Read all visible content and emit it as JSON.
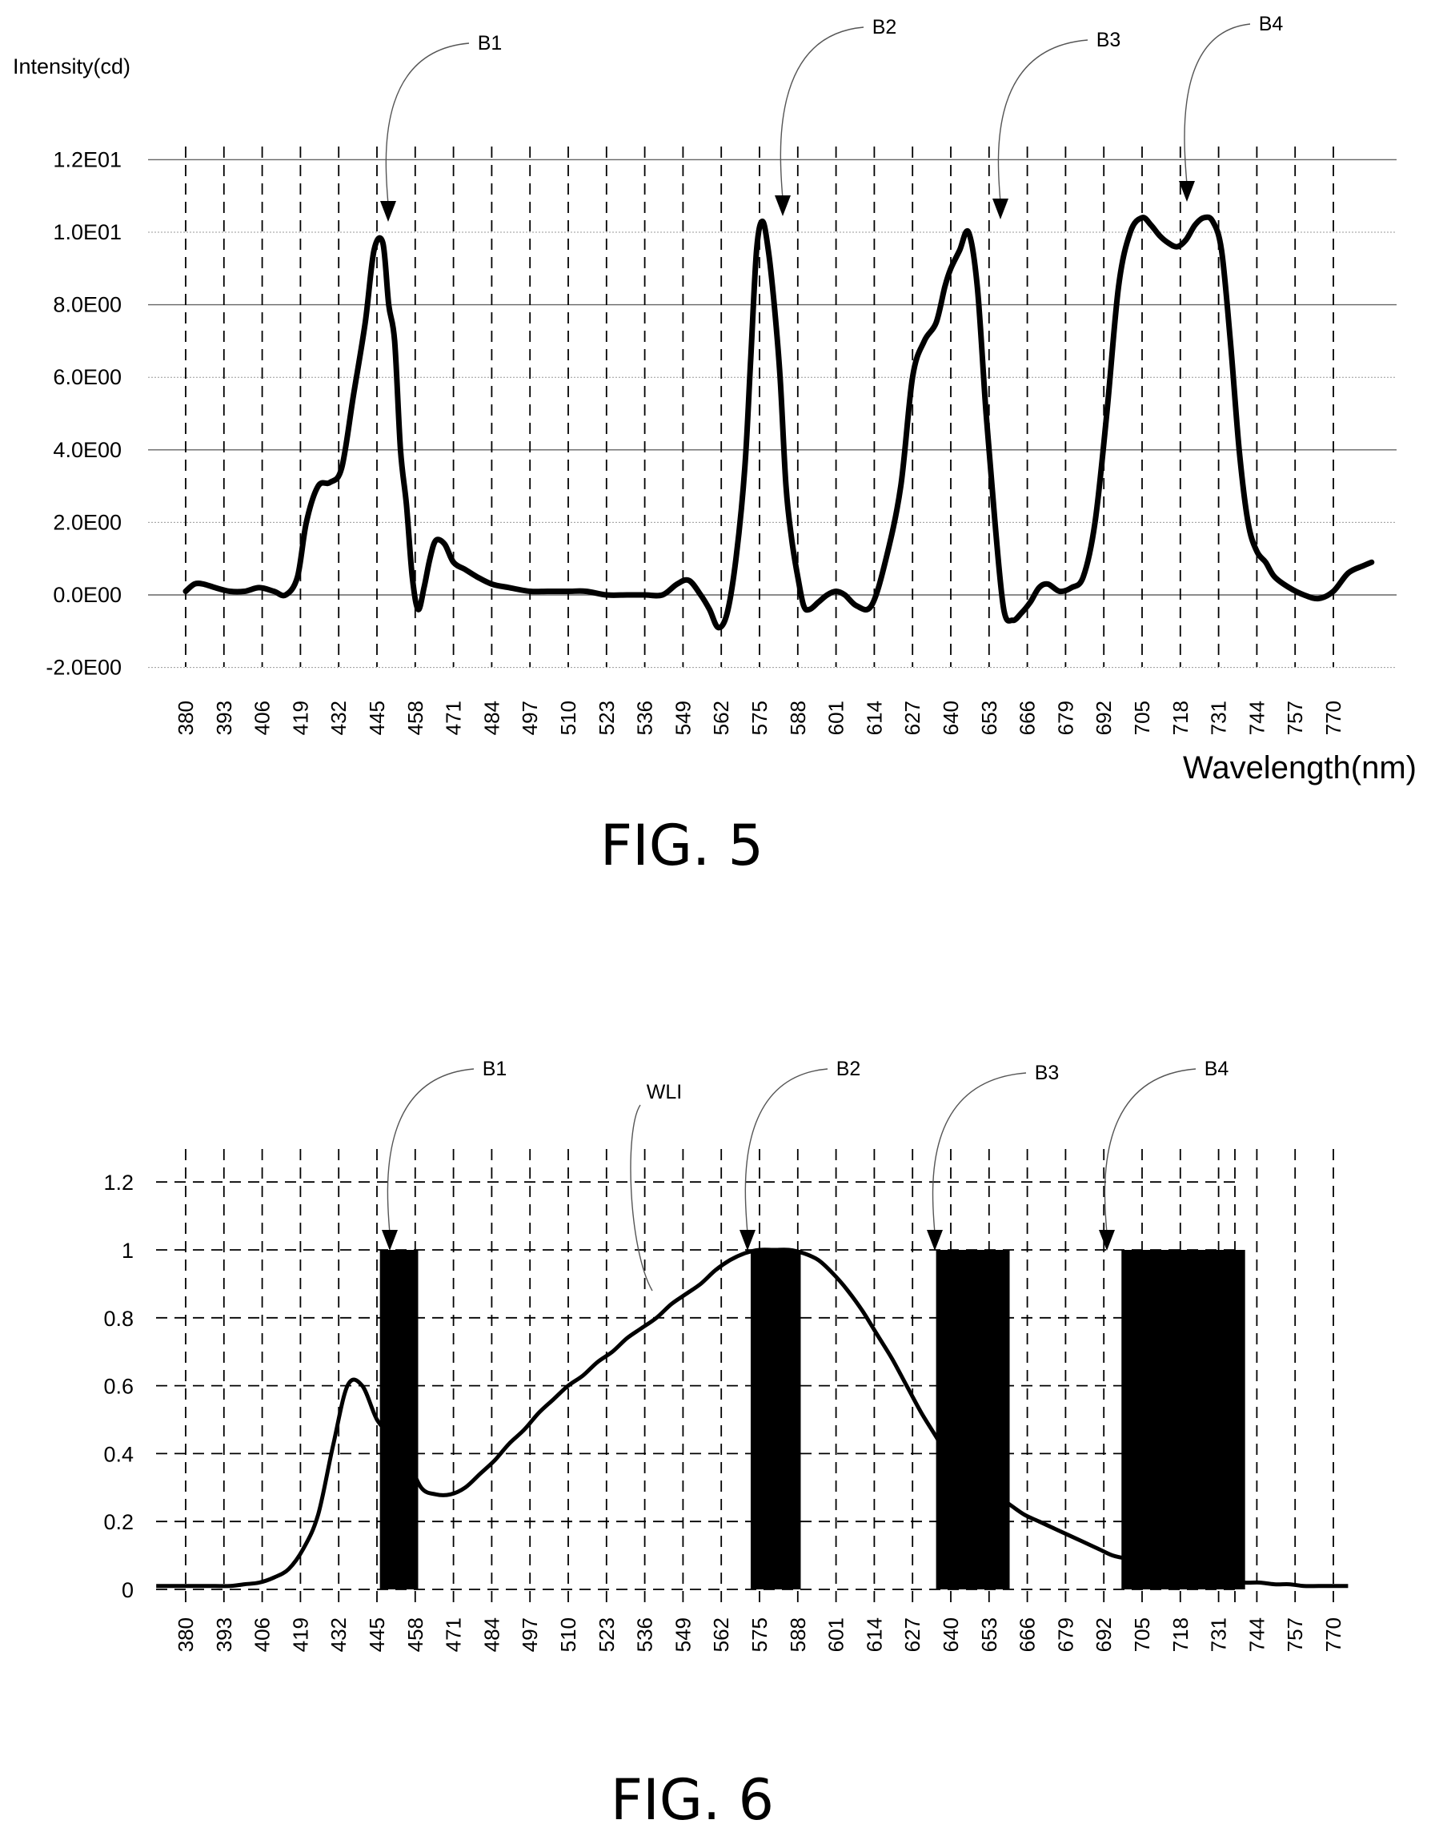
{
  "chart_data": [
    {
      "type": "line",
      "figure_label": "FIG. 5",
      "ylabel": "Intensity(cd)",
      "xlabel": "Wavelength(nm)",
      "x_ticks": [
        "380",
        "393",
        "406",
        "419",
        "432",
        "445",
        "458",
        "471",
        "484",
        "497",
        "510",
        "523",
        "536",
        "549",
        "562",
        "575",
        "588",
        "601",
        "614",
        "627",
        "640",
        "653",
        "666",
        "679",
        "692",
        "705",
        "718",
        "731",
        "744",
        "757",
        "770"
      ],
      "y_ticks": [
        "1.2E01",
        "1.0E01",
        "8.0E00",
        "6.0E00",
        "4.0E00",
        "2.0E00",
        "0.0E00",
        "-2.0E00"
      ],
      "ylim": [
        -2,
        12
      ],
      "xlim": [
        380,
        783
      ],
      "grid": "on",
      "series": [
        {
          "x": [
            380,
            383,
            386,
            390,
            395,
            400,
            405,
            410,
            414,
            418,
            421,
            425,
            429,
            433,
            437,
            441,
            444,
            447,
            449,
            451,
            453,
            455,
            457,
            459,
            461,
            463,
            465,
            468,
            471,
            475,
            479,
            484,
            490,
            497,
            503,
            510,
            516,
            523,
            530,
            536,
            542,
            547,
            551,
            555,
            558,
            561,
            564,
            567,
            570,
            572,
            574,
            576,
            578,
            580,
            582,
            584,
            586,
            588,
            590,
            592,
            595,
            598,
            601,
            604,
            608,
            613,
            618,
            623,
            627,
            631,
            635,
            638,
            640,
            643,
            646,
            649,
            652,
            655,
            658,
            661,
            664,
            667,
            670,
            673,
            677,
            681,
            685,
            689,
            693,
            697,
            701,
            705,
            708,
            711,
            714,
            717,
            720,
            723,
            726,
            729,
            732,
            735,
            738,
            741,
            744,
            747,
            750,
            755,
            760,
            765,
            770,
            775,
            780,
            783
          ],
          "y": [
            0.1,
            0.3,
            0.3,
            0.2,
            0.1,
            0.1,
            0.2,
            0.1,
            0.0,
            0.5,
            2.0,
            3.0,
            3.1,
            3.5,
            5.5,
            7.5,
            9.5,
            9.7,
            8.0,
            7.0,
            4.0,
            2.5,
            0.5,
            -0.4,
            0.2,
            1.0,
            1.5,
            1.4,
            0.9,
            0.7,
            0.5,
            0.3,
            0.2,
            0.1,
            0.1,
            0.1,
            0.1,
            0.0,
            0.0,
            0.0,
            0.0,
            0.3,
            0.4,
            0.0,
            -0.4,
            -0.9,
            -0.5,
            1.0,
            3.5,
            6.5,
            9.5,
            10.3,
            9.5,
            8.0,
            6.0,
            3.0,
            1.5,
            0.5,
            -0.3,
            -0.4,
            -0.2,
            0.0,
            0.1,
            0.0,
            -0.3,
            -0.3,
            1.0,
            3.0,
            6.0,
            7.0,
            7.5,
            8.5,
            9.0,
            9.5,
            10.0,
            8.5,
            5.0,
            2.0,
            -0.4,
            -0.7,
            -0.5,
            -0.2,
            0.2,
            0.3,
            0.1,
            0.2,
            0.5,
            2.0,
            5.0,
            8.5,
            10.0,
            10.4,
            10.2,
            9.9,
            9.7,
            9.6,
            9.8,
            10.2,
            10.4,
            10.3,
            9.5,
            7.0,
            4.0,
            2.0,
            1.2,
            0.9,
            0.5,
            0.2,
            0.0,
            -0.1,
            0.1,
            0.6,
            0.8,
            0.9
          ]
        }
      ],
      "annotations": [
        "B1",
        "B2",
        "B3",
        "B4"
      ],
      "annotation_x": [
        450,
        579,
        655,
        720
      ]
    },
    {
      "type": "line",
      "figure_label": "FIG. 6",
      "x_ticks": [
        "380",
        "393",
        "406",
        "419",
        "432",
        "445",
        "458",
        "471",
        "484",
        "497",
        "510",
        "523",
        "536",
        "549",
        "562",
        "575",
        "588",
        "601",
        "614",
        "627",
        "640",
        "653",
        "666",
        "679",
        "692",
        "705",
        "718",
        "731",
        "744",
        "757",
        "770"
      ],
      "y_ticks": [
        "1.2",
        "1",
        "0.8",
        "0.6",
        "0.4",
        "0.2",
        "0"
      ],
      "ylim": [
        0,
        1.2
      ],
      "xlim": [
        370,
        775
      ],
      "grid": "on",
      "series": [
        {
          "name": "WLI",
          "x": [
            370,
            375,
            380,
            385,
            390,
            395,
            400,
            405,
            410,
            415,
            420,
            425,
            430,
            435,
            440,
            445,
            450,
            455,
            460,
            465,
            470,
            475,
            480,
            485,
            490,
            495,
            500,
            505,
            510,
            515,
            520,
            525,
            530,
            535,
            540,
            545,
            550,
            555,
            560,
            565,
            570,
            575,
            580,
            585,
            590,
            595,
            600,
            605,
            610,
            615,
            620,
            625,
            630,
            635,
            640,
            645,
            650,
            655,
            660,
            665,
            670,
            675,
            680,
            685,
            690,
            695,
            700,
            705,
            710,
            715,
            720,
            725,
            730,
            735,
            740,
            745,
            750,
            755,
            760,
            765,
            770,
            775
          ],
          "y": [
            0.01,
            0.01,
            0.01,
            0.01,
            0.01,
            0.01,
            0.015,
            0.02,
            0.035,
            0.06,
            0.12,
            0.22,
            0.42,
            0.6,
            0.6,
            0.5,
            0.45,
            0.39,
            0.3,
            0.28,
            0.28,
            0.3,
            0.34,
            0.38,
            0.43,
            0.47,
            0.52,
            0.56,
            0.6,
            0.63,
            0.67,
            0.7,
            0.74,
            0.77,
            0.8,
            0.84,
            0.87,
            0.9,
            0.94,
            0.97,
            0.99,
            1.0,
            1.0,
            1.0,
            0.99,
            0.97,
            0.93,
            0.88,
            0.82,
            0.75,
            0.68,
            0.6,
            0.52,
            0.45,
            0.38,
            0.34,
            0.3,
            0.28,
            0.25,
            0.22,
            0.2,
            0.18,
            0.16,
            0.14,
            0.12,
            0.1,
            0.09,
            0.08,
            0.07,
            0.06,
            0.05,
            0.04,
            0.03,
            0.025,
            0.02,
            0.02,
            0.015,
            0.015,
            0.01,
            0.01,
            0.01,
            0.01
          ]
        }
      ],
      "bands": [
        {
          "name": "B1",
          "x_start": 446,
          "x_end": 459,
          "value": 1.0
        },
        {
          "name": "B2",
          "x_start": 572,
          "x_end": 589,
          "value": 1.0
        },
        {
          "name": "B3",
          "x_start": 635,
          "x_end": 660,
          "value": 1.0
        },
        {
          "name": "B4",
          "x_start": 698,
          "x_end": 740,
          "value": 1.0
        }
      ],
      "annotations": [
        "B1",
        "WLI",
        "B2",
        "B3",
        "B4"
      ],
      "annotation_x": [
        452,
        549,
        582,
        652,
        712
      ]
    }
  ]
}
